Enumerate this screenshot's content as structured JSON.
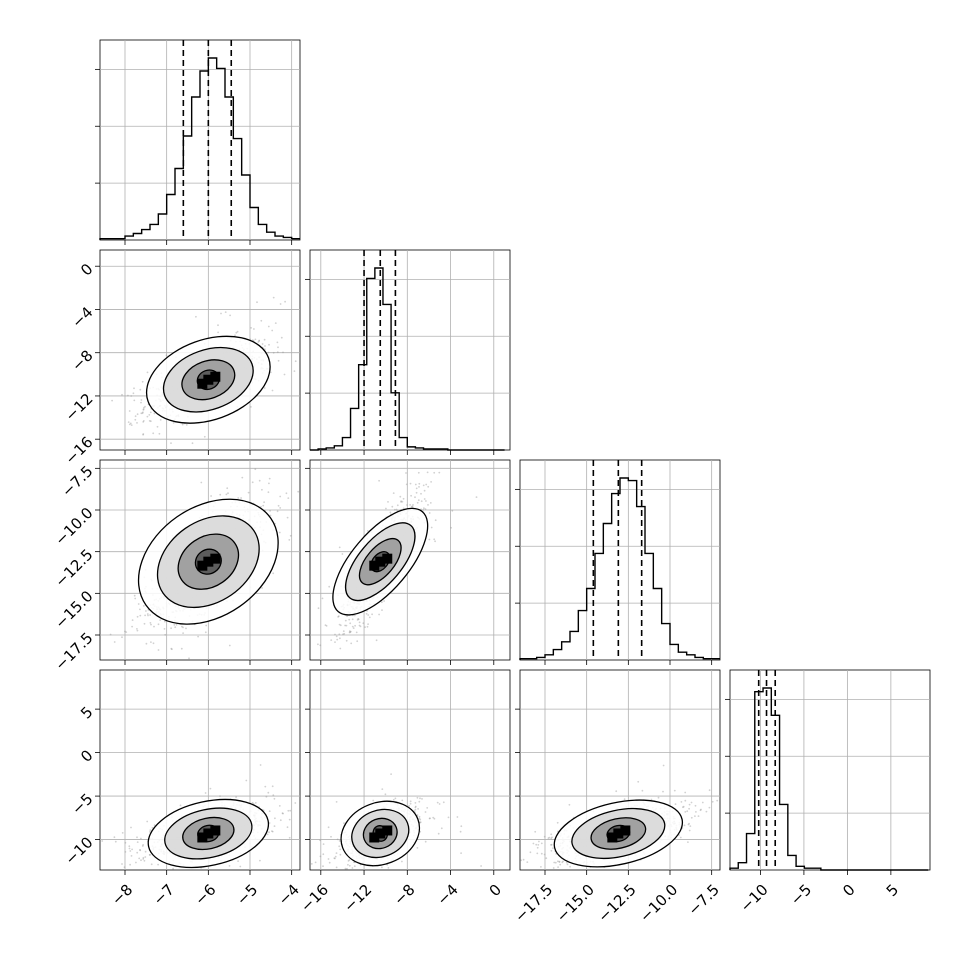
{
  "chart_data": {
    "type": "corner",
    "title": "",
    "grid": true,
    "parameters": [
      {
        "index": 0,
        "xlim": [
          -8.6,
          -3.8
        ],
        "ticks": [
          -8,
          -7,
          -6,
          -5,
          -4
        ],
        "tick_labels": [
          "−8",
          "−7",
          "−6",
          "−5",
          "−4"
        ],
        "quantiles": [
          -6.6,
          -6.0,
          -5.45
        ]
      },
      {
        "index": 1,
        "xlim": [
          -17.0,
          1.5
        ],
        "ticks": [
          -16,
          -12,
          -8,
          -4,
          0
        ],
        "tick_labels": [
          "−16",
          "−12",
          "−8",
          "−4",
          "0"
        ],
        "quantiles": [
          -12.0,
          -10.5,
          -9.1
        ]
      },
      {
        "index": 2,
        "xlim": [
          -19.0,
          -7.0
        ],
        "ticks": [
          -17.5,
          -15.0,
          -12.5,
          -10.0,
          -7.5
        ],
        "tick_labels": [
          "−17.5",
          "−15.0",
          "−12.5",
          "−10.0",
          "−7.5"
        ],
        "quantiles": [
          -14.6,
          -13.1,
          -11.7
        ]
      },
      {
        "index": 3,
        "xlim": [
          -13.5,
          9.5
        ],
        "ticks": [
          -10,
          -5,
          0,
          5
        ],
        "tick_labels": [
          "−10",
          "−5",
          "0",
          "5"
        ],
        "quantiles": [
          -10.2,
          -9.3,
          -8.3
        ]
      }
    ],
    "row_labels": {
      "1": [
        "0",
        "−4",
        "−8",
        "−12",
        "−16"
      ],
      "2": [
        "−7.5",
        "−10.0",
        "−12.5",
        "−15.0",
        "−17.5"
      ],
      "3": [
        "5",
        "0",
        "−5",
        "−10"
      ]
    },
    "histograms": [
      {
        "param": 0,
        "bin_width": 0.2,
        "bin_start": -8.6,
        "counts": [
          1,
          1,
          1,
          3,
          5,
          8,
          12,
          20,
          35,
          55,
          80,
          110,
          130,
          140,
          132,
          110,
          78,
          50,
          25,
          12,
          6,
          3,
          2,
          1
        ]
      },
      {
        "param": 1,
        "bin_width": 0.75,
        "bin_start": -17.0,
        "counts": [
          0,
          1,
          2,
          4,
          12,
          40,
          82,
          165,
          175,
          140,
          55,
          12,
          3,
          2,
          1,
          1,
          1,
          0,
          0,
          0,
          0,
          0,
          0,
          0
        ]
      },
      {
        "param": 2,
        "bin_width": 0.5,
        "bin_start": -19.0,
        "counts": [
          1,
          1,
          2,
          4,
          8,
          14,
          22,
          38,
          55,
          82,
          105,
          128,
          140,
          138,
          118,
          82,
          55,
          28,
          12,
          6,
          4,
          2,
          1,
          1
        ]
      },
      {
        "param": 3,
        "bin_width": 0.95,
        "bin_start": -13.5,
        "counts": [
          1,
          4,
          20,
          98,
          100,
          85,
          36,
          8,
          2,
          1,
          1,
          0,
          0,
          0,
          0,
          0,
          0,
          0,
          0,
          0,
          0,
          0,
          0,
          0
        ]
      }
    ],
    "pairs": [
      {
        "x_param": 0,
        "y_param": 1,
        "correlation": 0.65,
        "sd_x": 0.75,
        "sd_y": 1.8
      },
      {
        "x_param": 0,
        "y_param": 2,
        "correlation": 0.75,
        "sd_x": 0.75,
        "sd_y": 2.0
      },
      {
        "x_param": 1,
        "y_param": 2,
        "correlation": 0.85,
        "sd_x": 1.8,
        "sd_y": 2.0
      },
      {
        "x_param": 0,
        "y_param": 3,
        "correlation": 0.55,
        "sd_x": 0.75,
        "sd_y": 1.6
      },
      {
        "x_param": 1,
        "y_param": 3,
        "correlation": 0.6,
        "sd_x": 1.8,
        "sd_y": 1.6
      },
      {
        "x_param": 2,
        "y_param": 3,
        "correlation": 0.6,
        "sd_x": 2.0,
        "sd_y": 1.6
      }
    ],
    "colors": {
      "line": "#000000",
      "points": "#9a9a9a",
      "grid": "#b0b0b0",
      "fill_levels": [
        "#ffffff",
        "#d8d8d8",
        "#9a9a9a",
        "#555555"
      ]
    }
  }
}
